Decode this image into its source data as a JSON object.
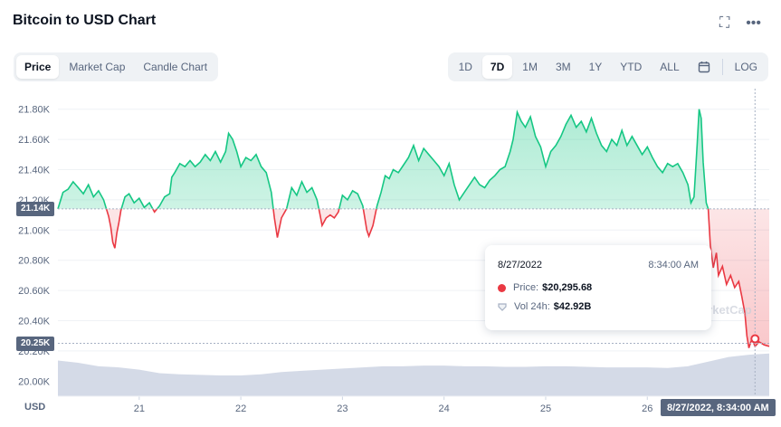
{
  "header": {
    "title": "Bitcoin to USD Chart",
    "fullscreen_icon": "fullscreen-icon",
    "more_icon": "more-icon"
  },
  "chart_type_tabs": [
    {
      "label": "Price",
      "active": true
    },
    {
      "label": "Market Cap",
      "active": false
    },
    {
      "label": "Candle Chart",
      "active": false
    }
  ],
  "range_tabs": [
    {
      "label": "1D",
      "active": false
    },
    {
      "label": "7D",
      "active": true
    },
    {
      "label": "1M",
      "active": false
    },
    {
      "label": "3M",
      "active": false
    },
    {
      "label": "1Y",
      "active": false
    },
    {
      "label": "YTD",
      "active": false
    },
    {
      "label": "ALL",
      "active": false
    }
  ],
  "calendar_icon": "calendar-icon",
  "log_label": "LOG",
  "currency_label": "USD",
  "crosshair": {
    "x_label": "8/27/2022, 8:34:00 AM",
    "y_label_current": "20.25K",
    "y_label_open": "21.14K"
  },
  "tooltip": {
    "date": "8/27/2022",
    "time": "8:34:00 AM",
    "price_label": "Price:",
    "price_value": "$20,295.68",
    "vol_label": "Vol 24h:",
    "vol_value": "$42.92B"
  },
  "watermark": "arketCap",
  "colors": {
    "up": "#16c784",
    "down": "#ea3943",
    "volume": "#cfd6e4",
    "grid": "#eff2f5",
    "label": "#58667e"
  },
  "chart_data": {
    "type": "line",
    "title": "Bitcoin to USD Chart",
    "xlabel": "",
    "ylabel": "USD",
    "ylim": [
      19900,
      21900
    ],
    "y_ticks": [
      "21.80K",
      "21.60K",
      "21.40K",
      "21.20K",
      "21.00K",
      "20.80K",
      "20.60K",
      "20.40K",
      "20.20K",
      "20.00K"
    ],
    "y_tick_values": [
      21800,
      21600,
      21400,
      21200,
      21000,
      20800,
      20600,
      20400,
      20200,
      20000
    ],
    "x_ticks": [
      "21",
      "22",
      "23",
      "24",
      "25",
      "26"
    ],
    "x_tick_values": [
      21,
      22,
      23,
      24,
      25,
      26
    ],
    "xlim": [
      20.2,
      27.2
    ],
    "baseline": 21140,
    "series": [
      {
        "points": [
          [
            20.2,
            21140
          ],
          [
            20.25,
            21250
          ],
          [
            20.3,
            21270
          ],
          [
            20.35,
            21320
          ],
          [
            20.4,
            21280
          ],
          [
            20.45,
            21240
          ],
          [
            20.5,
            21300
          ],
          [
            20.55,
            21220
          ],
          [
            20.6,
            21260
          ],
          [
            20.65,
            21200
          ],
          [
            20.7,
            21090
          ],
          [
            20.72,
            21020
          ],
          [
            20.74,
            20920
          ],
          [
            20.76,
            20880
          ],
          [
            20.78,
            20980
          ],
          [
            20.8,
            21050
          ],
          [
            20.82,
            21130
          ],
          [
            20.86,
            21220
          ],
          [
            20.9,
            21240
          ],
          [
            20.95,
            21180
          ],
          [
            21.0,
            21210
          ],
          [
            21.05,
            21150
          ],
          [
            21.1,
            21180
          ],
          [
            21.15,
            21120
          ],
          [
            21.2,
            21160
          ],
          [
            21.25,
            21220
          ],
          [
            21.3,
            21240
          ],
          [
            21.32,
            21350
          ],
          [
            21.35,
            21380
          ],
          [
            21.4,
            21440
          ],
          [
            21.45,
            21420
          ],
          [
            21.5,
            21460
          ],
          [
            21.55,
            21420
          ],
          [
            21.6,
            21450
          ],
          [
            21.65,
            21500
          ],
          [
            21.7,
            21460
          ],
          [
            21.75,
            21520
          ],
          [
            21.8,
            21450
          ],
          [
            21.85,
            21520
          ],
          [
            21.88,
            21640
          ],
          [
            21.92,
            21600
          ],
          [
            21.96,
            21520
          ],
          [
            22.0,
            21420
          ],
          [
            22.05,
            21480
          ],
          [
            22.1,
            21460
          ],
          [
            22.15,
            21500
          ],
          [
            22.2,
            21420
          ],
          [
            22.25,
            21380
          ],
          [
            22.3,
            21250
          ],
          [
            22.33,
            21080
          ],
          [
            22.36,
            20950
          ],
          [
            22.4,
            21080
          ],
          [
            22.45,
            21140
          ],
          [
            22.5,
            21280
          ],
          [
            22.55,
            21230
          ],
          [
            22.6,
            21320
          ],
          [
            22.65,
            21250
          ],
          [
            22.7,
            21280
          ],
          [
            22.75,
            21200
          ],
          [
            22.78,
            21100
          ],
          [
            22.8,
            21030
          ],
          [
            22.84,
            21080
          ],
          [
            22.88,
            21100
          ],
          [
            22.92,
            21080
          ],
          [
            22.96,
            21120
          ],
          [
            23.0,
            21230
          ],
          [
            23.05,
            21200
          ],
          [
            23.1,
            21260
          ],
          [
            23.15,
            21240
          ],
          [
            23.2,
            21160
          ],
          [
            23.24,
            21000
          ],
          [
            23.26,
            20960
          ],
          [
            23.3,
            21030
          ],
          [
            23.34,
            21160
          ],
          [
            23.38,
            21250
          ],
          [
            23.42,
            21360
          ],
          [
            23.46,
            21340
          ],
          [
            23.5,
            21400
          ],
          [
            23.55,
            21380
          ],
          [
            23.6,
            21430
          ],
          [
            23.65,
            21480
          ],
          [
            23.7,
            21560
          ],
          [
            23.75,
            21460
          ],
          [
            23.8,
            21540
          ],
          [
            23.85,
            21500
          ],
          [
            23.9,
            21460
          ],
          [
            23.95,
            21420
          ],
          [
            24.0,
            21360
          ],
          [
            24.05,
            21440
          ],
          [
            24.1,
            21300
          ],
          [
            24.15,
            21200
          ],
          [
            24.2,
            21250
          ],
          [
            24.25,
            21300
          ],
          [
            24.3,
            21350
          ],
          [
            24.35,
            21300
          ],
          [
            24.4,
            21280
          ],
          [
            24.45,
            21330
          ],
          [
            24.5,
            21360
          ],
          [
            24.55,
            21400
          ],
          [
            24.6,
            21420
          ],
          [
            24.65,
            21520
          ],
          [
            24.68,
            21600
          ],
          [
            24.72,
            21780
          ],
          [
            24.76,
            21720
          ],
          [
            24.8,
            21680
          ],
          [
            24.85,
            21750
          ],
          [
            24.9,
            21620
          ],
          [
            24.95,
            21550
          ],
          [
            25.0,
            21420
          ],
          [
            25.05,
            21520
          ],
          [
            25.1,
            21560
          ],
          [
            25.15,
            21620
          ],
          [
            25.2,
            21700
          ],
          [
            25.25,
            21760
          ],
          [
            25.3,
            21680
          ],
          [
            25.35,
            21720
          ],
          [
            25.4,
            21650
          ],
          [
            25.45,
            21740
          ],
          [
            25.5,
            21640
          ],
          [
            25.55,
            21560
          ],
          [
            25.6,
            21520
          ],
          [
            25.65,
            21600
          ],
          [
            25.7,
            21560
          ],
          [
            25.75,
            21660
          ],
          [
            25.8,
            21560
          ],
          [
            25.85,
            21620
          ],
          [
            25.9,
            21560
          ],
          [
            25.95,
            21500
          ],
          [
            26.0,
            21550
          ],
          [
            26.05,
            21480
          ],
          [
            26.1,
            21420
          ],
          [
            26.15,
            21380
          ],
          [
            26.2,
            21440
          ],
          [
            26.25,
            21420
          ],
          [
            26.3,
            21440
          ],
          [
            26.35,
            21380
          ],
          [
            26.4,
            21300
          ],
          [
            26.43,
            21180
          ],
          [
            26.46,
            21220
          ],
          [
            26.49,
            21560
          ],
          [
            26.51,
            21800
          ],
          [
            26.53,
            21740
          ],
          [
            26.55,
            21450
          ],
          [
            26.58,
            21180
          ],
          [
            26.6,
            21140
          ],
          [
            26.62,
            20900
          ],
          [
            26.65,
            20750
          ],
          [
            26.68,
            20850
          ],
          [
            26.7,
            20700
          ],
          [
            26.74,
            20760
          ],
          [
            26.78,
            20640
          ],
          [
            26.82,
            20700
          ],
          [
            26.86,
            20620
          ],
          [
            26.9,
            20660
          ],
          [
            26.93,
            20560
          ],
          [
            26.96,
            20450
          ],
          [
            26.98,
            20300
          ],
          [
            27.0,
            20220
          ],
          [
            27.03,
            20280
          ],
          [
            27.06,
            20230
          ],
          [
            27.1,
            20260
          ],
          [
            27.15,
            20240
          ],
          [
            27.2,
            20230
          ]
        ]
      }
    ],
    "volume_series": [
      [
        20.2,
        0.62
      ],
      [
        20.4,
        0.58
      ],
      [
        20.6,
        0.52
      ],
      [
        20.8,
        0.5
      ],
      [
        21.0,
        0.46
      ],
      [
        21.2,
        0.4
      ],
      [
        21.4,
        0.38
      ],
      [
        21.6,
        0.37
      ],
      [
        21.8,
        0.36
      ],
      [
        22.0,
        0.36
      ],
      [
        22.2,
        0.38
      ],
      [
        22.4,
        0.42
      ],
      [
        22.6,
        0.44
      ],
      [
        22.8,
        0.46
      ],
      [
        23.0,
        0.48
      ],
      [
        23.2,
        0.5
      ],
      [
        23.4,
        0.52
      ],
      [
        23.6,
        0.52
      ],
      [
        23.8,
        0.53
      ],
      [
        24.0,
        0.53
      ],
      [
        24.2,
        0.52
      ],
      [
        24.4,
        0.52
      ],
      [
        24.6,
        0.51
      ],
      [
        24.8,
        0.51
      ],
      [
        25.0,
        0.52
      ],
      [
        25.2,
        0.52
      ],
      [
        25.4,
        0.51
      ],
      [
        25.6,
        0.5
      ],
      [
        25.8,
        0.5
      ],
      [
        26.0,
        0.5
      ],
      [
        26.2,
        0.49
      ],
      [
        26.4,
        0.52
      ],
      [
        26.6,
        0.6
      ],
      [
        26.8,
        0.68
      ],
      [
        27.0,
        0.72
      ],
      [
        27.2,
        0.74
      ]
    ]
  }
}
